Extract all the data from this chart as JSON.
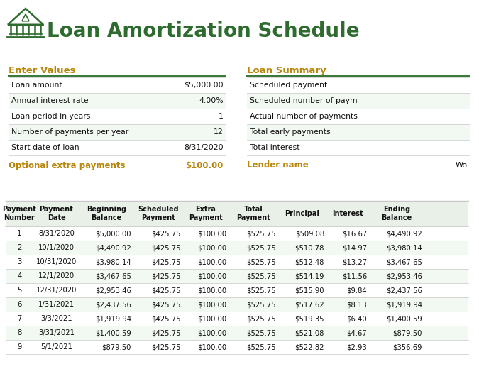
{
  "title": "Loan Amortization Schedule",
  "green": "#2e6b2e",
  "gold": "#b8860b",
  "line_green": "#3a7a3a",
  "tbl_line": "#c8c8c8",
  "alt_row": "#f2f8f2",
  "white_row": "#ffffff",
  "hdr_bg": "#e8f0e8",
  "text_dark": "#111111",
  "enter_values_label": "Enter Values",
  "enter_rows": [
    [
      "Loan amount",
      "$5,000.00"
    ],
    [
      "Annual interest rate",
      "4.00%"
    ],
    [
      "Loan period in years",
      "1"
    ],
    [
      "Number of payments per year",
      "12"
    ],
    [
      "Start date of loan",
      "8/31/2020"
    ]
  ],
  "optional_label": "Optional extra payments",
  "optional_value": "$100.00",
  "loan_summary_label": "Loan Summary",
  "summary_rows": [
    "Scheduled payment",
    "Scheduled number of paym",
    "Actual number of payments",
    "Total early payments",
    "Total interest"
  ],
  "lender_label": "Lender name",
  "lender_value": "Wo",
  "sched_headers": [
    "Payment\nNumber",
    "Payment\nDate",
    "Beginning\nBalance",
    "Scheduled\nPayment",
    "Extra\nPayment",
    "Total\nPayment",
    "Principal",
    "Interest",
    "Ending\nBalance"
  ],
  "sched_rows": [
    [
      "1",
      "8/31/2020",
      "$5,000.00",
      "$425.75",
      "$100.00",
      "$525.75",
      "$509.08",
      "$16.67",
      "$4,490.92"
    ],
    [
      "2",
      "10/1/2020",
      "$4,490.92",
      "$425.75",
      "$100.00",
      "$525.75",
      "$510.78",
      "$14.97",
      "$3,980.14"
    ],
    [
      "3",
      "10/31/2020",
      "$3,980.14",
      "$425.75",
      "$100.00",
      "$525.75",
      "$512.48",
      "$13.27",
      "$3,467.65"
    ],
    [
      "4",
      "12/1/2020",
      "$3,467.65",
      "$425.75",
      "$100.00",
      "$525.75",
      "$514.19",
      "$11.56",
      "$2,953.46"
    ],
    [
      "5",
      "12/31/2020",
      "$2,953.46",
      "$425.75",
      "$100.00",
      "$525.75",
      "$515.90",
      "$9.84",
      "$2,437.56"
    ],
    [
      "6",
      "1/31/2021",
      "$2,437.56",
      "$425.75",
      "$100.00",
      "$525.75",
      "$517.62",
      "$8.13",
      "$1,919.94"
    ],
    [
      "7",
      "3/3/2021",
      "$1,919.94",
      "$425.75",
      "$100.00",
      "$525.75",
      "$519.35",
      "$6.40",
      "$1,400.59"
    ],
    [
      "8",
      "3/31/2021",
      "$1,400.59",
      "$425.75",
      "$100.00",
      "$525.75",
      "$521.08",
      "$4.67",
      "$879.50"
    ],
    [
      "9",
      "5/1/2021",
      "$879.50",
      "$425.75",
      "$100.00",
      "$525.75",
      "$522.82",
      "$2.93",
      "$356.69"
    ]
  ],
  "col_rights": [
    47,
    112,
    188,
    258,
    322,
    392,
    460,
    520,
    598,
    660
  ],
  "figw": 6.75,
  "figh": 5.2,
  "dpi": 100
}
